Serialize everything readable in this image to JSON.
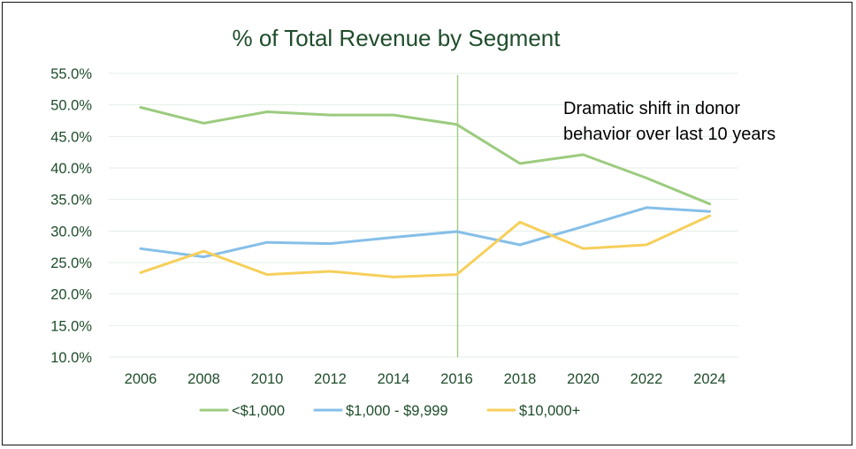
{
  "chart_data": {
    "type": "line",
    "title": "% of Total Revenue by Segment",
    "xlabel": "",
    "ylabel": "",
    "x": [
      "2006",
      "2008",
      "2010",
      "2012",
      "2014",
      "2016",
      "2018",
      "2020",
      "2022",
      "2024"
    ],
    "y_ticks": [
      "55.0%",
      "50.0%",
      "45.0%",
      "40.0%",
      "35.0%",
      "30.0%",
      "25.0%",
      "20.0%",
      "15.0%",
      "10.0%"
    ],
    "ylim": [
      10,
      55
    ],
    "grid": true,
    "legend_position": "bottom",
    "series": [
      {
        "name": "<$1,000",
        "color": "#9ccb7f",
        "values": [
          49.6,
          47.1,
          48.9,
          48.4,
          48.4,
          46.9,
          40.7,
          42.1,
          38.4,
          34.3
        ]
      },
      {
        "name": "$1,000 - $9,999",
        "color": "#86bfe8",
        "values": [
          27.2,
          25.9,
          28.2,
          28.0,
          29.0,
          29.9,
          27.8,
          30.7,
          33.7,
          33.1
        ]
      },
      {
        "name": "$10,000+",
        "color": "#f6cf5b",
        "values": [
          23.4,
          26.8,
          23.1,
          23.6,
          22.7,
          23.1,
          31.4,
          27.2,
          27.8,
          32.4
        ]
      }
    ],
    "reference_line": {
      "x": "2016",
      "color": "#9ccb7f"
    },
    "annotation": {
      "lines": [
        "Dramatic shift in donor",
        "behavior over last 10 years"
      ]
    }
  }
}
